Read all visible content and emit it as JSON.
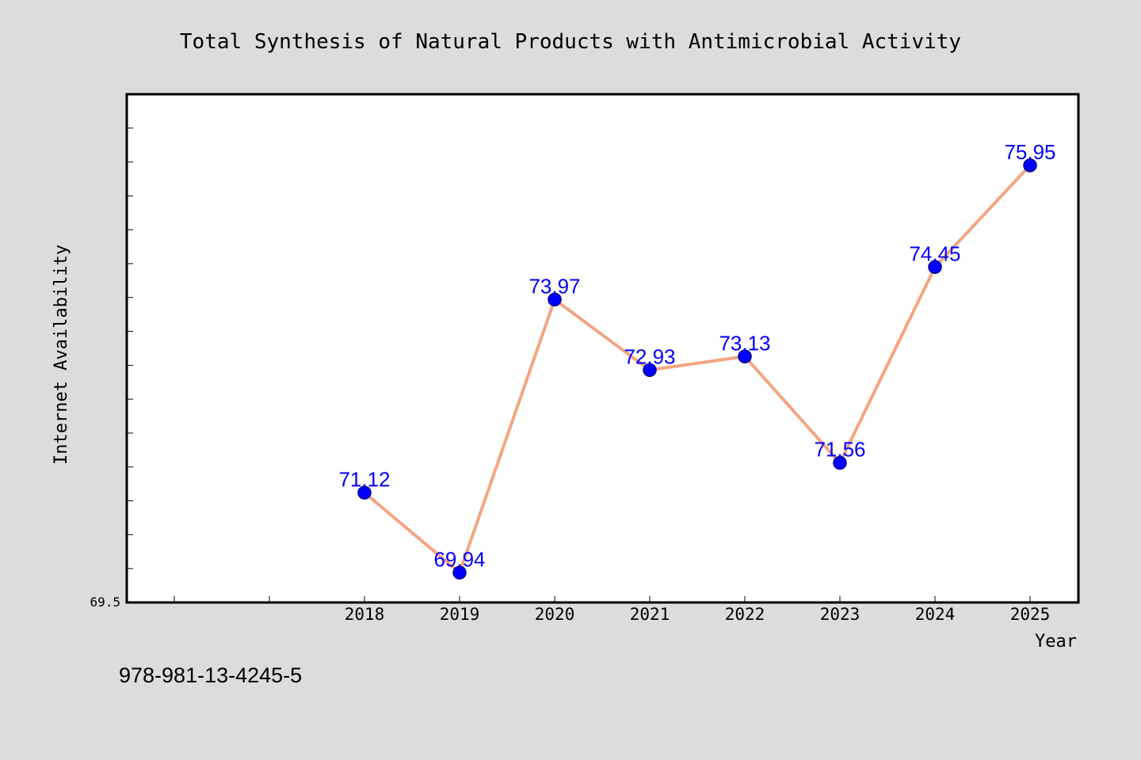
{
  "colors": {
    "background": "#dcdcdc",
    "plot_background": "#ffffff",
    "frame": "#000000",
    "line": "#f4a582",
    "marker": "#0000ff",
    "data_label": "#0000ff",
    "text": "#000000"
  },
  "chart_data": {
    "type": "line",
    "title": "Total Synthesis of Natural Products with Antimicrobial Activity",
    "xlabel": "Year",
    "ylabel": "Internet Availability",
    "categories": [
      "2018",
      "2019",
      "2020",
      "2021",
      "2022",
      "2023",
      "2024",
      "2025"
    ],
    "x_leading_empty_slots": 2,
    "series": [
      {
        "values": [
          71.12,
          69.94,
          73.97,
          72.93,
          73.13,
          71.56,
          74.45,
          75.95
        ]
      }
    ],
    "data_labels": [
      "71.12",
      "69.94",
      "73.97",
      "72.93",
      "73.13",
      "71.56",
      "74.45",
      "75.95"
    ],
    "y_tick_labels": [
      "69.5"
    ],
    "ylim": [
      69.5,
      77.0
    ],
    "y_minor_tick_step": 0.5,
    "grid": false,
    "legend": "none",
    "footnote": "978-981-13-4245-5"
  }
}
